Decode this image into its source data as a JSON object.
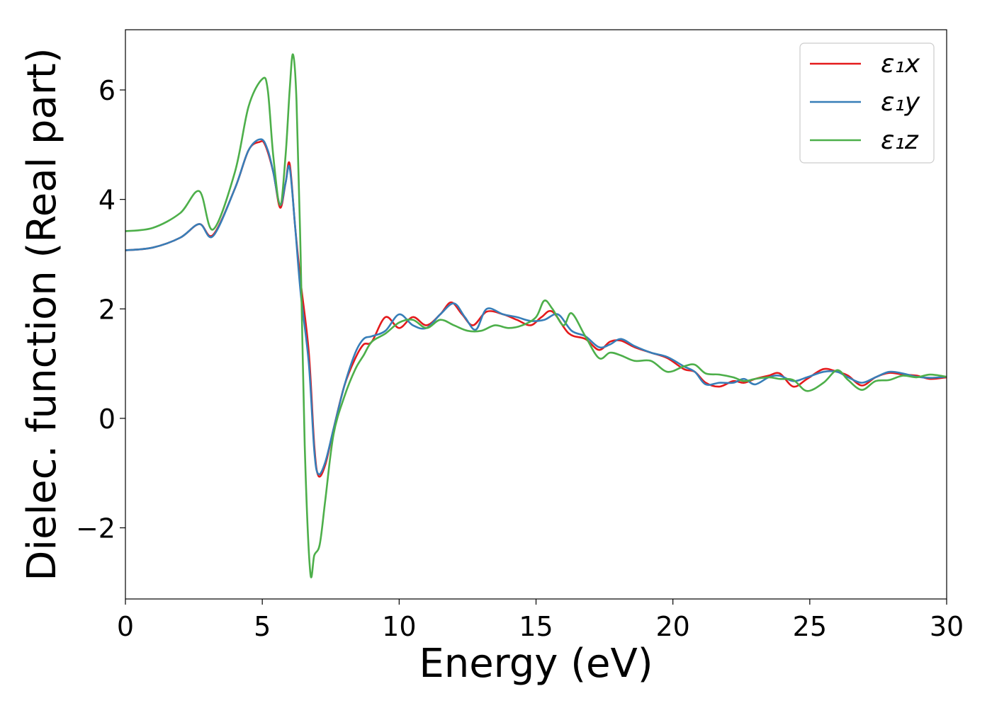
{
  "chart_data": {
    "type": "line",
    "xlabel": "Energy (eV)",
    "ylabel": "Dielec. function (Real part)",
    "xlim": [
      0,
      30
    ],
    "ylim": [
      -3.3,
      7.1
    ],
    "x_ticks": [
      0,
      5,
      10,
      15,
      20,
      25,
      30
    ],
    "x_tick_labels": [
      "0",
      "5",
      "10",
      "15",
      "20",
      "25",
      "30"
    ],
    "y_ticks": [
      -2,
      0,
      2,
      4,
      6
    ],
    "y_tick_labels": [
      "−2",
      "0",
      "2",
      "4",
      "6"
    ],
    "grid": false,
    "legend_position": "top-right",
    "series": [
      {
        "name": "ε₁x",
        "color": "#e41a1c",
        "points": [
          [
            0,
            3.07
          ],
          [
            1,
            3.12
          ],
          [
            2,
            3.3
          ],
          [
            2.7,
            3.55
          ],
          [
            3.2,
            3.35
          ],
          [
            4,
            4.2
          ],
          [
            4.5,
            4.9
          ],
          [
            4.9,
            5.05
          ],
          [
            5.1,
            5.0
          ],
          [
            5.4,
            4.5
          ],
          [
            5.65,
            3.85
          ],
          [
            5.85,
            4.3
          ],
          [
            6.0,
            4.65
          ],
          [
            6.2,
            3.5
          ],
          [
            6.4,
            2.5
          ],
          [
            6.7,
            1.2
          ],
          [
            6.9,
            -0.5
          ],
          [
            7.05,
            -1.05
          ],
          [
            7.3,
            -0.85
          ],
          [
            7.6,
            -0.2
          ],
          [
            8.0,
            0.6
          ],
          [
            8.4,
            1.1
          ],
          [
            8.7,
            1.35
          ],
          [
            9.0,
            1.4
          ],
          [
            9.5,
            1.85
          ],
          [
            10.0,
            1.65
          ],
          [
            10.5,
            1.85
          ],
          [
            11.0,
            1.7
          ],
          [
            11.5,
            1.9
          ],
          [
            11.9,
            2.12
          ],
          [
            12.3,
            1.9
          ],
          [
            12.7,
            1.7
          ],
          [
            13.2,
            1.95
          ],
          [
            13.8,
            1.9
          ],
          [
            14.3,
            1.8
          ],
          [
            14.8,
            1.7
          ],
          [
            15.2,
            1.85
          ],
          [
            15.6,
            1.95
          ],
          [
            16.2,
            1.55
          ],
          [
            16.8,
            1.45
          ],
          [
            17.3,
            1.25
          ],
          [
            17.7,
            1.4
          ],
          [
            18.1,
            1.42
          ],
          [
            18.6,
            1.3
          ],
          [
            19.2,
            1.2
          ],
          [
            19.8,
            1.1
          ],
          [
            20.4,
            0.9
          ],
          [
            20.8,
            0.85
          ],
          [
            21.2,
            0.65
          ],
          [
            21.7,
            0.58
          ],
          [
            22.2,
            0.68
          ],
          [
            22.6,
            0.65
          ],
          [
            23.0,
            0.72
          ],
          [
            23.5,
            0.78
          ],
          [
            23.9,
            0.82
          ],
          [
            24.4,
            0.58
          ],
          [
            24.9,
            0.72
          ],
          [
            25.5,
            0.9
          ],
          [
            26.0,
            0.85
          ],
          [
            26.4,
            0.78
          ],
          [
            26.9,
            0.6
          ],
          [
            27.4,
            0.75
          ],
          [
            27.9,
            0.83
          ],
          [
            28.4,
            0.8
          ],
          [
            28.9,
            0.78
          ],
          [
            29.4,
            0.72
          ],
          [
            30,
            0.75
          ]
        ]
      },
      {
        "name": "ε₁y",
        "color": "#377eb8",
        "points": [
          [
            0,
            3.07
          ],
          [
            1,
            3.12
          ],
          [
            2,
            3.3
          ],
          [
            2.7,
            3.55
          ],
          [
            3.2,
            3.33
          ],
          [
            4,
            4.2
          ],
          [
            4.5,
            4.9
          ],
          [
            4.95,
            5.1
          ],
          [
            5.2,
            4.9
          ],
          [
            5.4,
            4.5
          ],
          [
            5.65,
            3.9
          ],
          [
            5.85,
            4.3
          ],
          [
            6.0,
            4.58
          ],
          [
            6.2,
            3.5
          ],
          [
            6.4,
            2.3
          ],
          [
            6.7,
            1.0
          ],
          [
            6.9,
            -0.6
          ],
          [
            7.05,
            -1.02
          ],
          [
            7.3,
            -0.8
          ],
          [
            7.6,
            -0.2
          ],
          [
            8.0,
            0.6
          ],
          [
            8.4,
            1.2
          ],
          [
            8.7,
            1.45
          ],
          [
            9.0,
            1.5
          ],
          [
            9.5,
            1.6
          ],
          [
            10.0,
            1.9
          ],
          [
            10.5,
            1.7
          ],
          [
            11.0,
            1.65
          ],
          [
            11.5,
            1.9
          ],
          [
            12.0,
            2.1
          ],
          [
            12.4,
            1.85
          ],
          [
            12.8,
            1.62
          ],
          [
            13.2,
            2.0
          ],
          [
            13.8,
            1.9
          ],
          [
            14.3,
            1.85
          ],
          [
            14.8,
            1.78
          ],
          [
            15.3,
            1.8
          ],
          [
            15.8,
            1.9
          ],
          [
            16.3,
            1.6
          ],
          [
            16.8,
            1.5
          ],
          [
            17.3,
            1.3
          ],
          [
            17.7,
            1.35
          ],
          [
            18.1,
            1.45
          ],
          [
            18.6,
            1.32
          ],
          [
            19.2,
            1.2
          ],
          [
            19.8,
            1.12
          ],
          [
            20.4,
            0.95
          ],
          [
            20.8,
            0.85
          ],
          [
            21.2,
            0.62
          ],
          [
            21.7,
            0.65
          ],
          [
            22.2,
            0.65
          ],
          [
            22.6,
            0.72
          ],
          [
            23.0,
            0.62
          ],
          [
            23.5,
            0.75
          ],
          [
            23.9,
            0.78
          ],
          [
            24.4,
            0.68
          ],
          [
            24.9,
            0.75
          ],
          [
            25.5,
            0.85
          ],
          [
            26.0,
            0.85
          ],
          [
            26.4,
            0.75
          ],
          [
            26.9,
            0.65
          ],
          [
            27.4,
            0.75
          ],
          [
            27.9,
            0.85
          ],
          [
            28.4,
            0.82
          ],
          [
            28.9,
            0.76
          ],
          [
            29.4,
            0.74
          ],
          [
            30,
            0.76
          ]
        ]
      },
      {
        "name": "ε₁z",
        "color": "#4daf4a",
        "points": [
          [
            0,
            3.42
          ],
          [
            1,
            3.48
          ],
          [
            2,
            3.75
          ],
          [
            2.7,
            4.15
          ],
          [
            3.2,
            3.45
          ],
          [
            4,
            4.5
          ],
          [
            4.5,
            5.7
          ],
          [
            5.0,
            6.2
          ],
          [
            5.2,
            6.0
          ],
          [
            5.4,
            4.8
          ],
          [
            5.65,
            3.9
          ],
          [
            5.85,
            4.8
          ],
          [
            6.0,
            6.0
          ],
          [
            6.12,
            6.65
          ],
          [
            6.25,
            5.8
          ],
          [
            6.4,
            3.0
          ],
          [
            6.55,
            -0.5
          ],
          [
            6.75,
            -2.8
          ],
          [
            6.9,
            -2.5
          ],
          [
            7.1,
            -2.3
          ],
          [
            7.3,
            -1.5
          ],
          [
            7.6,
            -0.3
          ],
          [
            8.0,
            0.4
          ],
          [
            8.4,
            0.9
          ],
          [
            8.7,
            1.15
          ],
          [
            9.0,
            1.4
          ],
          [
            9.5,
            1.55
          ],
          [
            10.0,
            1.75
          ],
          [
            10.5,
            1.8
          ],
          [
            11.0,
            1.65
          ],
          [
            11.5,
            1.8
          ],
          [
            12.0,
            1.7
          ],
          [
            12.5,
            1.6
          ],
          [
            13.0,
            1.6
          ],
          [
            13.5,
            1.7
          ],
          [
            14.0,
            1.65
          ],
          [
            14.5,
            1.7
          ],
          [
            15.0,
            1.85
          ],
          [
            15.3,
            2.15
          ],
          [
            15.6,
            2.0
          ],
          [
            16.0,
            1.7
          ],
          [
            16.3,
            1.92
          ],
          [
            16.8,
            1.5
          ],
          [
            17.3,
            1.1
          ],
          [
            17.7,
            1.2
          ],
          [
            18.1,
            1.15
          ],
          [
            18.6,
            1.05
          ],
          [
            19.2,
            1.05
          ],
          [
            19.8,
            0.85
          ],
          [
            20.4,
            0.95
          ],
          [
            20.8,
            0.98
          ],
          [
            21.2,
            0.82
          ],
          [
            21.7,
            0.8
          ],
          [
            22.2,
            0.75
          ],
          [
            22.6,
            0.68
          ],
          [
            23.0,
            0.72
          ],
          [
            23.5,
            0.75
          ],
          [
            23.9,
            0.72
          ],
          [
            24.4,
            0.7
          ],
          [
            24.9,
            0.5
          ],
          [
            25.5,
            0.65
          ],
          [
            26.0,
            0.88
          ],
          [
            26.4,
            0.7
          ],
          [
            26.9,
            0.52
          ],
          [
            27.4,
            0.68
          ],
          [
            27.9,
            0.7
          ],
          [
            28.4,
            0.78
          ],
          [
            28.9,
            0.75
          ],
          [
            29.4,
            0.8
          ],
          [
            30,
            0.76
          ]
        ]
      }
    ]
  }
}
